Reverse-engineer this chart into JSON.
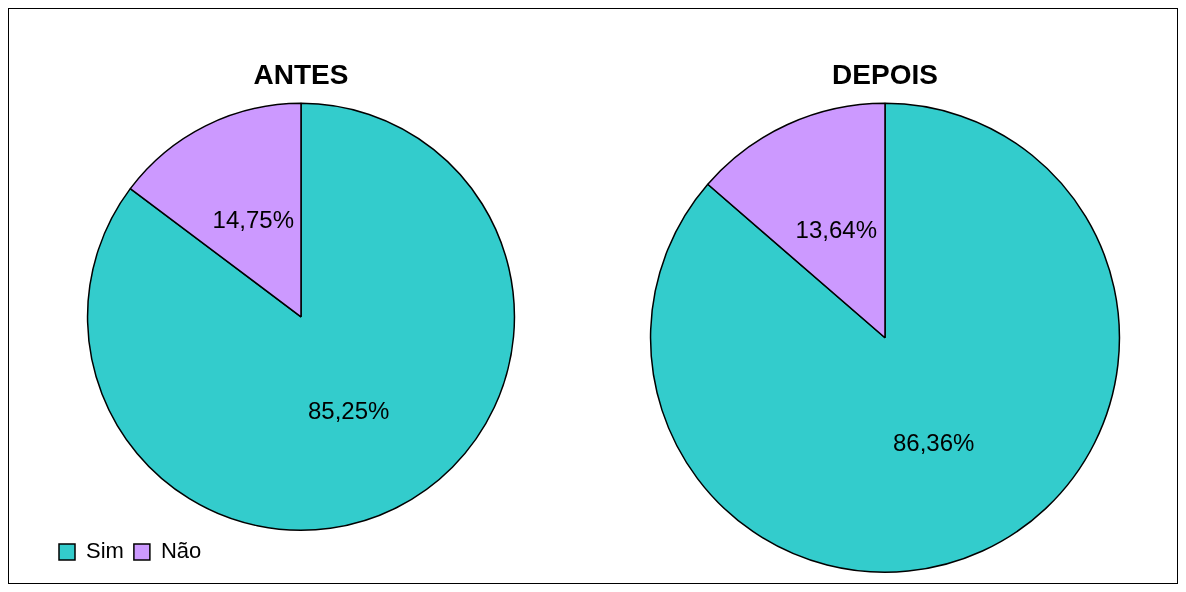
{
  "chart_data": [
    {
      "type": "pie",
      "title": "ANTES",
      "categories": [
        "Sim",
        "Não"
      ],
      "values": [
        85.25,
        14.75
      ],
      "colors": [
        "#33cccc",
        "#cc99ff"
      ],
      "value_labels": [
        "85,25%",
        "14,75%"
      ],
      "legend": "bottom left"
    },
    {
      "type": "pie",
      "title": "DEPOIS",
      "categories": [
        null,
        null
      ],
      "values": [
        86.36,
        13.64
      ],
      "colors": [
        "#33cccc",
        "#cc99ff"
      ],
      "value_labels": [
        "86,36%",
        "13,64%"
      ]
    }
  ]
}
